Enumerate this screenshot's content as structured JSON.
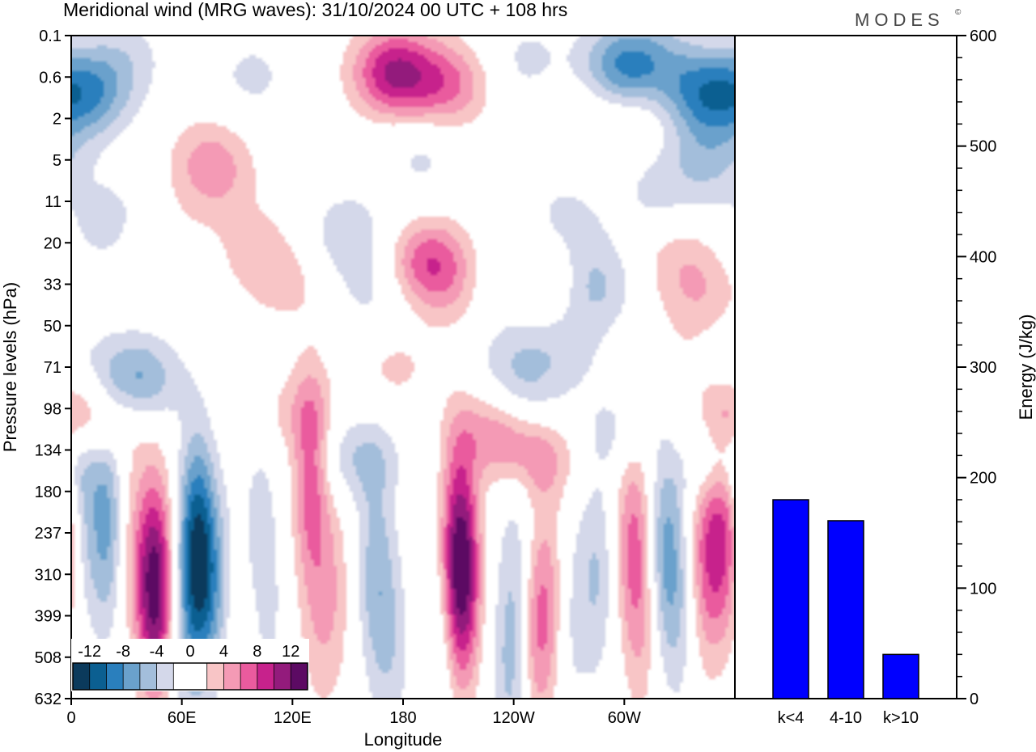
{
  "title": "Meridional wind (MRG waves):  31/10/2024  00 UTC  + 108 hrs",
  "logo": "MODES",
  "logo_mark": "©",
  "colors": {
    "neg": [
      "#0b3a5c",
      "#0b5f91",
      "#2a7fbd",
      "#6aa1cc",
      "#a3bedb",
      "#d4d8ea"
    ],
    "zero": "#ffffff",
    "pos": [
      "#f8c5c6",
      "#f49ab5",
      "#ea5b9e",
      "#c7228c",
      "#931b7c",
      "#5c0a63"
    ],
    "bar": "#0000ff"
  },
  "chart_data": [
    {
      "type": "heatmap",
      "description_field": "meridional wind",
      "xlabel": "Longitude",
      "ylabel": "Pressure levels (hPa)",
      "x_ticks": [
        "0",
        "60E",
        "120E",
        "180",
        "120W",
        "60W"
      ],
      "y_ticks": [
        "0.1",
        "0.6",
        "2",
        "5",
        "11",
        "20",
        "33",
        "50",
        "71",
        "98",
        "134",
        "180",
        "237",
        "310",
        "399",
        "508",
        "632"
      ],
      "colorbar": {
        "labels": [
          "-12",
          "-8",
          "-4",
          "0",
          "4",
          "8",
          "12"
        ],
        "levels": [
          -14,
          -12,
          -10,
          -8,
          -6,
          -4,
          -2,
          2,
          4,
          6,
          8,
          10,
          12,
          14
        ]
      },
      "features": [
        {
          "lon": 10,
          "lev": 1.4,
          "v": -7
        },
        {
          "lon": 22,
          "lev": 4.6,
          "v": -4
        },
        {
          "lon": 30,
          "lev": 0.5,
          "v": -2.5
        },
        {
          "lon": 20,
          "lev": 11.9,
          "v": -7
        },
        {
          "lon": 45,
          "lev": 12.8,
          "v": -4
        },
        {
          "lon": 60,
          "lev": 15.1,
          "v": -2.5
        },
        {
          "lon": 75,
          "lev": 2.9,
          "v": 3.5
        },
        {
          "lon": 40,
          "lev": 5.0,
          "v": 2.5
        },
        {
          "lon": 98,
          "lev": 1.0,
          "v": -2.5
        },
        {
          "lon": 78,
          "lev": 3.6,
          "v": 2.5
        },
        {
          "lon": 100,
          "lev": 5.1,
          "v": 2.5
        },
        {
          "lon": 115,
          "lev": 6.0,
          "v": 2.5
        },
        {
          "lon": 190,
          "lev": 2.9,
          "v": -2.5
        },
        {
          "lon": 150,
          "lev": 4.8,
          "v": -3.5
        },
        {
          "lon": 175,
          "lev": 0.9,
          "v": 10
        },
        {
          "lon": 205,
          "lev": 1.2,
          "v": 6
        },
        {
          "lon": 195,
          "lev": 5.5,
          "v": 8
        },
        {
          "lon": 212,
          "lev": 6.3,
          "v": 2.5
        },
        {
          "lon": 120,
          "lev": 9.1,
          "v": 2.5
        },
        {
          "lon": 175,
          "lev": 8.0,
          "v": 2.5
        },
        {
          "lon": 247,
          "lev": 0.6,
          "v": -2.5
        },
        {
          "lon": 268,
          "lev": 4.4,
          "v": -2.5
        },
        {
          "lon": 285,
          "lev": 1.6,
          "v": 2.5
        },
        {
          "lon": 310,
          "lev": 1.7,
          "v": 2.5
        },
        {
          "lon": 297,
          "lev": 0.9,
          "v": -8
        },
        {
          "lon": 315,
          "lev": 0.6,
          "v": -4
        },
        {
          "lon": 342,
          "lev": 1.4,
          "v": -8
        },
        {
          "lon": 346,
          "lev": 3.0,
          "v": -4
        },
        {
          "lon": 318,
          "lev": 3.8,
          "v": -2.5
        },
        {
          "lon": 330,
          "lev": 5.4,
          "v": 3
        },
        {
          "lon": 343,
          "lev": 6.4,
          "v": 3
        },
        {
          "lon": 350,
          "lev": 7.8,
          "v": -3
        },
        {
          "lon": 165,
          "lev": 6.3,
          "v": -2.5
        },
        {
          "lon": 226,
          "lev": 6.0,
          "v": -2.5
        },
        {
          "lon": 257,
          "lev": 6.0,
          "v": 4
        },
        {
          "lon": 282,
          "lev": 6.0,
          "v": -5
        },
        {
          "lon": 268,
          "lev": 7.5,
          "v": -2.5
        },
        {
          "lon": 240,
          "lev": 7.6,
          "v": -2.5
        },
        {
          "lon": 338,
          "lev": 7.9,
          "v": 3
        },
        {
          "lon": 35,
          "lev": 8.3,
          "v": -7
        },
        {
          "lon": 10,
          "lev": 9.2,
          "v": 6
        },
        {
          "lon": 245,
          "lev": 8.8,
          "v": -4
        },
        {
          "lon": 232,
          "lev": 9.5,
          "v": 6
        },
        {
          "lon": 255,
          "lev": 10.2,
          "v": 4
        },
        {
          "lon": 300,
          "lev": 9.6,
          "v": -3
        },
        {
          "lon": 348,
          "lev": 10.2,
          "v": -6
        },
        {
          "lon": 332,
          "lev": 10.0,
          "v": 3
        },
        {
          "lon": 155,
          "lev": 10.2,
          "v": -4
        },
        {
          "lon": 130,
          "lev": 10.6,
          "v": 7
        },
        {
          "lon": 5,
          "lev": 11.6,
          "v": -4
        },
        {
          "lon": 30,
          "lev": 12.2,
          "v": 3
        },
        {
          "lon": 44,
          "lev": 12.7,
          "v": 7
        },
        {
          "lon": 46,
          "lev": 13.5,
          "v": 11
        },
        {
          "lon": 67,
          "lev": 12.0,
          "v": -6
        },
        {
          "lon": 70,
          "lev": 13.0,
          "v": -8
        },
        {
          "lon": 80,
          "lev": 13.3,
          "v": -3
        },
        {
          "lon": 102,
          "lev": 12.0,
          "v": -3
        },
        {
          "lon": 105,
          "lev": 14.5,
          "v": -2.5
        },
        {
          "lon": 133,
          "lev": 14.0,
          "v": 2.5
        },
        {
          "lon": 143,
          "lev": 13.5,
          "v": 3
        },
        {
          "lon": 165,
          "lev": 13.0,
          "v": -5
        },
        {
          "lon": 174,
          "lev": 14.8,
          "v": -3
        },
        {
          "lon": 210,
          "lev": 12.0,
          "v": 6
        },
        {
          "lon": 212,
          "lev": 13.3,
          "v": 10
        },
        {
          "lon": 200,
          "lev": 14.8,
          "v": -2.5
        },
        {
          "lon": 238,
          "lev": 15.4,
          "v": -4
        },
        {
          "lon": 253,
          "lev": 14.2,
          "v": 6
        },
        {
          "lon": 262,
          "lev": 13.5,
          "v": 3
        },
        {
          "lon": 242,
          "lev": 12.8,
          "v": -3
        },
        {
          "lon": 285,
          "lev": 13.0,
          "v": -4
        },
        {
          "lon": 270,
          "lev": 14.0,
          "v": -3
        },
        {
          "lon": 305,
          "lev": 12.2,
          "v": 6
        },
        {
          "lon": 310,
          "lev": 14.3,
          "v": 3
        },
        {
          "lon": 322,
          "lev": 12.4,
          "v": -6
        },
        {
          "lon": 330,
          "lev": 13.8,
          "v": -3
        },
        {
          "lon": 344,
          "lev": 12.6,
          "v": 6
        },
        {
          "lon": 355,
          "lev": 12.0,
          "v": 8
        },
        {
          "lon": 95,
          "lev": 15.0,
          "v": 3
        }
      ]
    },
    {
      "type": "bar",
      "categories": [
        "k<4",
        "4-10",
        "k>10"
      ],
      "values": [
        180,
        161,
        40
      ],
      "ylabel": "Energy (J/kg)",
      "ylim": [
        0,
        600
      ],
      "y_ticks": [
        "0",
        "100",
        "200",
        "300",
        "400",
        "500",
        "600"
      ]
    }
  ]
}
